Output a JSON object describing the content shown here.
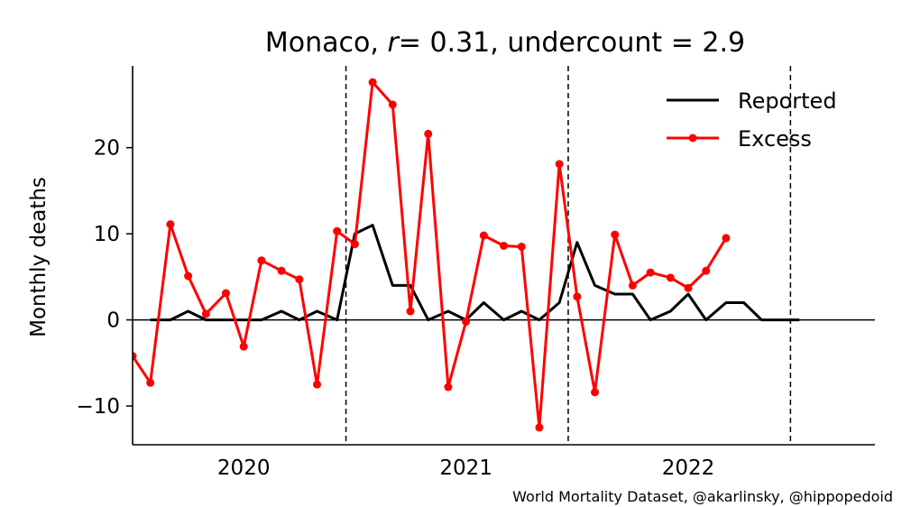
{
  "chart_data": {
    "type": "line",
    "title": {
      "prefix": "Monaco, ",
      "r_symbol": "r",
      "r_value": "= 0.31, undercount = 2.9"
    },
    "xlabel": "",
    "ylabel": "Monthly deaths",
    "xlim": [
      2019.5,
      2022.84
    ],
    "ylim": [
      -14.5,
      29.5
    ],
    "yticks": [
      -10,
      0,
      10,
      20
    ],
    "ytick_labels": [
      "−10",
      "0",
      "10",
      "20"
    ],
    "xticks": [
      2020,
      2021,
      2022
    ],
    "xtick_labels": [
      "2020",
      "2021",
      "2022"
    ],
    "xtick_positions": [
      2020.0,
      2021.0,
      2022.0
    ],
    "vlines": [
      2020.46,
      2021.46,
      2022.46
    ],
    "hline": 0,
    "legend_position": "top-right",
    "credit": "World Mortality Dataset, @akarlinsky, @hippopedoid",
    "series": [
      {
        "name": "Reported",
        "color": "#000000",
        "marker": "none",
        "x": [
          2019.58,
          2019.67,
          2019.75,
          2019.83,
          2019.92,
          2020.0,
          2020.08,
          2020.17,
          2020.25,
          2020.33,
          2020.42,
          2020.5,
          2020.58,
          2020.67,
          2020.75,
          2020.83,
          2020.92,
          2021.0,
          2021.08,
          2021.17,
          2021.25,
          2021.33,
          2021.42,
          2021.5,
          2021.58,
          2021.67,
          2021.75,
          2021.83,
          2021.92,
          2022.0,
          2022.08,
          2022.17,
          2022.25,
          2022.33,
          2022.42,
          2022.5
        ],
        "values": [
          0,
          0,
          1,
          0,
          0,
          0,
          0,
          1,
          0,
          1,
          0,
          10,
          11,
          4,
          4,
          0,
          1,
          0,
          2,
          0,
          1,
          0,
          2,
          9,
          4,
          3,
          3,
          0,
          1,
          3,
          0,
          2,
          2,
          0,
          0,
          0
        ]
      },
      {
        "name": "Excess",
        "color": "#ff0000",
        "marker": "circle",
        "x": [
          2019.5,
          2019.58,
          2019.67,
          2019.75,
          2019.83,
          2019.92,
          2020.0,
          2020.08,
          2020.17,
          2020.25,
          2020.33,
          2020.42,
          2020.5,
          2020.58,
          2020.67,
          2020.75,
          2020.83,
          2020.92,
          2021.0,
          2021.08,
          2021.17,
          2021.25,
          2021.33,
          2021.42,
          2021.5,
          2021.58,
          2021.67,
          2021.75,
          2021.83,
          2021.92,
          2022.0,
          2022.08,
          2022.17
        ],
        "values": [
          -4.2,
          -7.3,
          11.1,
          5.1,
          0.7,
          3.1,
          -3.1,
          6.9,
          5.7,
          4.7,
          -7.5,
          10.3,
          8.8,
          27.6,
          25.0,
          1.0,
          21.6,
          -7.8,
          -0.2,
          9.8,
          8.6,
          8.5,
          -12.5,
          18.1,
          2.7,
          -8.4,
          9.9,
          4.0,
          5.5,
          4.9,
          3.7,
          5.7,
          9.5
        ]
      }
    ]
  }
}
